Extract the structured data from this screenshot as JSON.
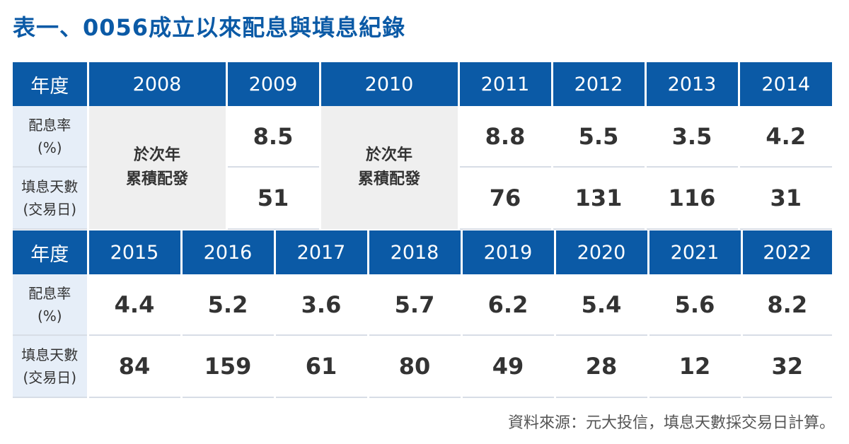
{
  "title": "表一、0056成立以來配息與填息紀錄",
  "labels": {
    "year": "年度",
    "dividend_rate_line1": "配息率",
    "dividend_rate_line2": "(%)",
    "fill_days_line1": "填息天數",
    "fill_days_line2": "(交易日)"
  },
  "cumulative_note_line1": "於次年",
  "cumulative_note_line2": "累積配發",
  "source": "資料來源：元大投信，填息天數採交易日計算。",
  "chart_data": {
    "type": "table",
    "title": "表一、0056成立以來配息與填息紀錄",
    "columns": [
      "年度",
      "配息率(%)",
      "填息天數(交易日)"
    ],
    "rows": [
      {
        "year": "2008",
        "dividend_rate": "於次年累積配發",
        "fill_days": "於次年累積配發"
      },
      {
        "year": "2009",
        "dividend_rate": "8.5",
        "fill_days": "51"
      },
      {
        "year": "2010",
        "dividend_rate": "於次年累積配發",
        "fill_days": "於次年累積配發"
      },
      {
        "year": "2011",
        "dividend_rate": "8.8",
        "fill_days": "76"
      },
      {
        "year": "2012",
        "dividend_rate": "5.5",
        "fill_days": "131"
      },
      {
        "year": "2013",
        "dividend_rate": "3.5",
        "fill_days": "116"
      },
      {
        "year": "2014",
        "dividend_rate": "4.2",
        "fill_days": "31"
      },
      {
        "year": "2015",
        "dividend_rate": "4.4",
        "fill_days": "84"
      },
      {
        "year": "2016",
        "dividend_rate": "5.2",
        "fill_days": "159"
      },
      {
        "year": "2017",
        "dividend_rate": "3.6",
        "fill_days": "61"
      },
      {
        "year": "2018",
        "dividend_rate": "5.7",
        "fill_days": "80"
      },
      {
        "year": "2019",
        "dividend_rate": "6.2",
        "fill_days": "49"
      },
      {
        "year": "2020",
        "dividend_rate": "5.4",
        "fill_days": "28"
      },
      {
        "year": "2021",
        "dividend_rate": "5.6",
        "fill_days": "12"
      },
      {
        "year": "2022",
        "dividend_rate": "8.2",
        "fill_days": "32"
      }
    ]
  },
  "colors": {
    "header_blue": "#0b5aa6",
    "label_bg": "#e6eef8",
    "grey_cell": "#efefef",
    "text": "#333333"
  }
}
